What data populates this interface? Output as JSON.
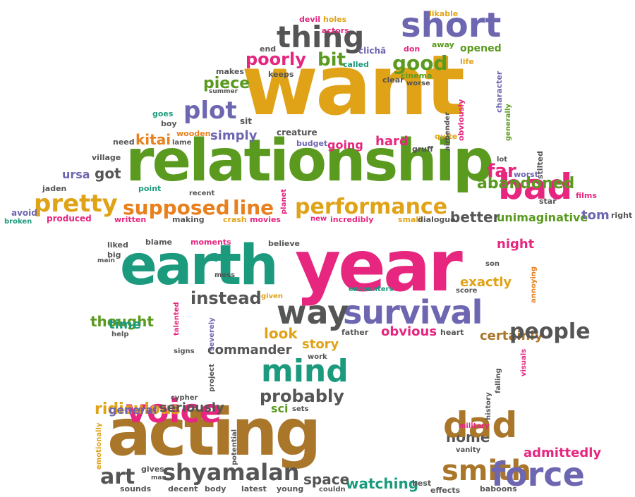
{
  "palette": {
    "green": "#5a9a1e",
    "pink": "#e6267f",
    "teal": "#1c9a7e",
    "orange": "#e8801e",
    "gold": "#e0a317",
    "purple": "#6d66b0",
    "gray": "#555555",
    "brown": "#a9762a"
  },
  "words": {
    "want": "want",
    "relationship": "relationship",
    "year": "year",
    "earth": "earth",
    "acting": "acting",
    "survival": "survival",
    "bad": "bad",
    "short": "short",
    "thing": "thing",
    "voice": "voice",
    "mind": "mind",
    "smith": "smith",
    "force": "force",
    "dad": "dad",
    "way": "way",
    "shyamalan": "shyamalan",
    "pretty": "pretty",
    "supposed": "supposed",
    "line": "line",
    "performance": "performance",
    "plot": "plot",
    "good": "good",
    "bit": "bit",
    "poorly": "poorly",
    "piece": "piece",
    "people": "people",
    "art": "art",
    "abandoned": "abandoned",
    "instead": "instead",
    "probably": "probably",
    "commander": "commander",
    "watching": "watching",
    "space": "space",
    "home": "home",
    "look": "look",
    "story": "story",
    "obvious": "obvious",
    "exactly": "exactly",
    "certainly": "certainly",
    "night": "night",
    "better": "better",
    "unimaginative": "unimaginative",
    "tom": "tom",
    "ridiculous": "ridiculous",
    "thought": "thought",
    "time": "time",
    "seriously": "seriously",
    "kitai": "kitai",
    "simply": "simply",
    "got": "got",
    "ursa": "ursa",
    "far": "far",
    "hard": "hard",
    "going": "going",
    "admittedly": "admittedly",
    "general": "general",
    "sci": "sci",
    "devil": "devil",
    "holes": "holes",
    "actors": "actors",
    "likable": "likable",
    "cliche": "clichã",
    "don": "don",
    "away": "away",
    "opened": "opened",
    "end": "end",
    "called": "called",
    "life": "life",
    "makes": "makes",
    "keeps": "keeps",
    "cinema": "cinema",
    "summer": "summer",
    "clear": "clear",
    "worse": "worse",
    "sit": "sit",
    "goes": "goes",
    "boy": "boy",
    "obviously": "obviously",
    "character": "character",
    "generally": "generally",
    "need": "need",
    "lame": "lame",
    "wooden": "wooden",
    "creature": "creature",
    "quite": "quite",
    "airbender": "airbender",
    "budget": "budget",
    "gruff": "gruff",
    "village": "village",
    "lot": "lot",
    "worst": "worst",
    "stilted": "stilted",
    "jaden": "jaden",
    "point": "point",
    "recent": "recent",
    "star": "star",
    "films": "films",
    "avoid": "avoid",
    "broken": "broken",
    "produced": "produced",
    "written": "written",
    "making": "making",
    "crash": "crash",
    "movies": "movies",
    "planet": "planet",
    "new": "new",
    "incredibly": "incredibly",
    "small": "small",
    "dialogue": "dialogue",
    "right": "right",
    "liked": "liked",
    "blame": "blame",
    "moments": "moments",
    "believe": "believe",
    "big": "big",
    "main": "main",
    "son": "son",
    "mess": "mess",
    "given": "given",
    "encounters": "encounters",
    "score": "score",
    "annoying": "annoying",
    "help": "help",
    "talented": "talented",
    "severely": "severely",
    "father": "father",
    "heart": "heart",
    "signs": "signs",
    "work": "work",
    "project": "project",
    "cypher": "cypher",
    "sets": "sets",
    "history": "history",
    "falling": "falling",
    "visuals": "visuals",
    "emotionally": "emotionally",
    "potential": "potential",
    "military": "military",
    "vanity": "vanity",
    "gives": "gives",
    "man": "man",
    "sounds": "sounds",
    "decent": "decent",
    "body": "body",
    "latest": "latest",
    "young": "young",
    "couldn": "couldn",
    "best": "best",
    "effects": "effects",
    "baboons": "baboons"
  }
}
